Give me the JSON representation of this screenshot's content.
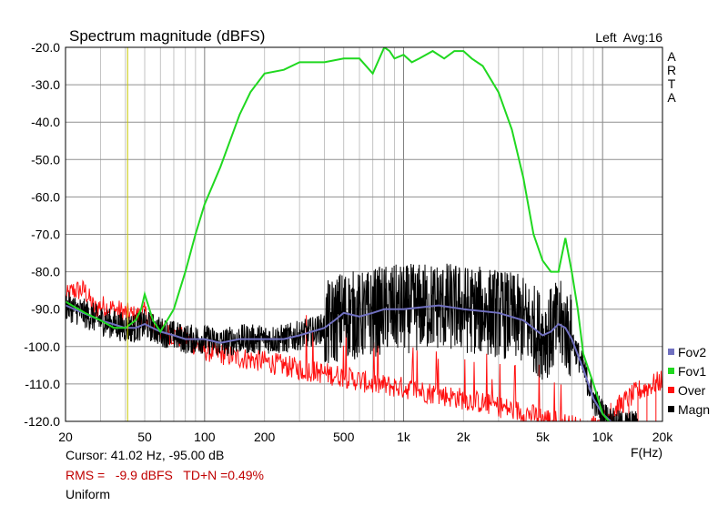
{
  "chart_data": {
    "type": "line",
    "title": "Spectrum magnitude (dBFS)",
    "top_right_label": "Left  Avg:16",
    "watermark": "ARTA",
    "xlabel": "F(Hz)",
    "x_scale": "log",
    "xlim": [
      20,
      20000
    ],
    "ylim": [
      -120,
      -20
    ],
    "x_ticks": [
      20,
      50,
      100,
      200,
      500,
      1000,
      2000,
      5000,
      10000,
      20000
    ],
    "x_tick_labels": [
      "20",
      "50",
      "100",
      "200",
      "500",
      "1k",
      "2k",
      "5k",
      "10k",
      "20k"
    ],
    "y_ticks": [
      -20,
      -30,
      -40,
      -50,
      -60,
      -70,
      -80,
      -90,
      -100,
      -110,
      -120
    ],
    "y_tick_labels": [
      "-20.0",
      "-30.0",
      "-40.0",
      "-50.0",
      "-60.0",
      "-70.0",
      "-80.0",
      "-90.0",
      "-100.0",
      "-110.0",
      "-120.0"
    ],
    "grid": true,
    "cursor_x": 41.02,
    "legend_position": "bottom-right",
    "series": [
      {
        "name": "Fov2",
        "color": "#7070c0",
        "x": [
          20,
          30,
          40,
          45,
          50,
          60,
          70,
          80,
          100,
          120,
          150,
          200,
          250,
          300,
          400,
          450,
          500,
          600,
          700,
          800,
          1000,
          1500,
          2000,
          3000,
          4000,
          5000,
          5500,
          6000,
          6500,
          7000,
          8000,
          9000,
          10000,
          11000,
          12000
        ],
        "y": [
          -89,
          -93,
          -95,
          -95,
          -94,
          -96,
          -97,
          -98,
          -98,
          -99,
          -98,
          -98,
          -98,
          -97,
          -95,
          -93,
          -91,
          -92,
          -91,
          -90,
          -90,
          -89,
          -90,
          -91,
          -93,
          -97,
          -96,
          -94,
          -95,
          -98,
          -106,
          -114,
          -118,
          -120,
          -121
        ]
      },
      {
        "name": "Fov1",
        "color": "#20d820",
        "x": [
          20,
          25,
          30,
          35,
          40,
          45,
          48,
          50,
          55,
          60,
          70,
          80,
          90,
          100,
          120,
          150,
          170,
          200,
          250,
          300,
          400,
          500,
          600,
          700,
          800,
          850,
          900,
          1000,
          1100,
          1200,
          1400,
          1600,
          1800,
          2000,
          2200,
          2500,
          3000,
          3500,
          4000,
          4500,
          5000,
          5500,
          6000,
          6500,
          7000,
          7500,
          8000,
          9000,
          10000,
          12000
        ],
        "y": [
          -88,
          -91,
          -93,
          -95,
          -95,
          -93,
          -90,
          -86,
          -93,
          -96,
          -90,
          -80,
          -70,
          -62,
          -52,
          -38,
          -32,
          -27,
          -26,
          -24,
          -24,
          -23,
          -23,
          -27,
          -20,
          -21,
          -23,
          -22,
          -24,
          -23,
          -21,
          -23,
          -21,
          -21,
          -23,
          -25,
          -32,
          -42,
          -55,
          -70,
          -77,
          -80,
          -80,
          -71,
          -80,
          -90,
          -102,
          -110,
          -118,
          -123
        ]
      },
      {
        "name": "Over",
        "color": "#ff1010",
        "x": [
          20,
          22,
          25,
          28,
          30,
          35,
          40,
          45,
          50,
          55,
          60,
          70,
          80,
          100,
          150,
          200,
          300,
          500,
          700,
          1000,
          2000,
          3000,
          5000,
          8000,
          10000,
          12000,
          15000,
          20000
        ],
        "y": [
          -87,
          -85,
          -85,
          -90,
          -89,
          -90,
          -91,
          -92,
          -91,
          -94,
          -96,
          -97,
          -98,
          -101,
          -103,
          -104,
          -106,
          -108,
          -110,
          -111,
          -114,
          -116,
          -119,
          -122,
          -120,
          -116,
          -112,
          -109
        ]
      },
      {
        "name": "Magn",
        "color": "#000000"
      }
    ]
  },
  "info": {
    "cursor": "Cursor: 41.02 Hz, -95.00 dB",
    "rms": "RMS =   -9.9 dBFS   TD+N =0.49%",
    "window": "Uniform"
  }
}
